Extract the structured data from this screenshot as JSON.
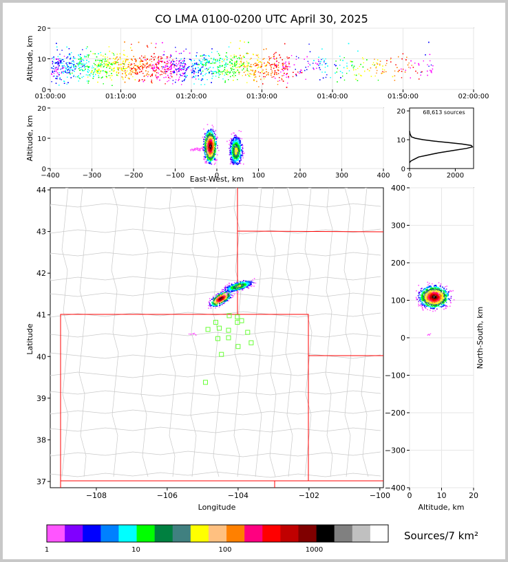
{
  "title": "CO LMA 0100-0200 UTC April 30, 2025",
  "panels": {
    "time_height": {
      "ylabel": "Altitude, km",
      "yticks": [
        "0",
        "10",
        "20"
      ],
      "xticks": [
        "01:00:00",
        "01:10:00",
        "01:20:00",
        "01:30:00",
        "01:40:00",
        "01:50:00",
        "02:00:00"
      ]
    },
    "ew_height": {
      "xlabel": "East-West, km",
      "ylabel": "Altitude, km",
      "xticks": [
        "−400",
        "−300",
        "−200",
        "−100",
        "0",
        "100",
        "200",
        "300",
        "400"
      ],
      "yticks": [
        "0",
        "10",
        "20"
      ]
    },
    "histogram": {
      "annotation": "68,613 sources",
      "xticks": [
        "0",
        "2000"
      ],
      "yticks": [
        "0",
        "10",
        "20"
      ]
    },
    "plan": {
      "xlabel": "Longitude",
      "ylabel": "Latitude",
      "xticks": [
        "−108",
        "−106",
        "−104",
        "−102",
        "−100"
      ],
      "yticks": [
        "37",
        "38",
        "39",
        "40",
        "41",
        "42",
        "43",
        "44"
      ]
    },
    "ns_height": {
      "xlabel": "Altitude, km",
      "ylabel": "North-South, km",
      "xticks": [
        "0",
        "10",
        "20"
      ],
      "yticks": [
        "400",
        "300",
        "200",
        "100",
        "0",
        "−100",
        "−200",
        "−300",
        "−400"
      ]
    }
  },
  "colorbar": {
    "label": "Sources/7 km²",
    "ticks": [
      "1",
      "10",
      "100",
      "1000"
    ],
    "colors": [
      "#ff55ff",
      "#8000ff",
      "#0000ff",
      "#0080ff",
      "#00ffff",
      "#00ff00",
      "#008040",
      "#408080",
      "#ffff00",
      "#ffc080",
      "#ff8000",
      "#ff0080",
      "#ff0000",
      "#c00000",
      "#800000",
      "#000000",
      "#808080",
      "#c0c0c0",
      "#ffffff"
    ]
  },
  "chart_data": [
    {
      "type": "scatter",
      "title": "CO LMA 0100-0200 UTC April 30, 2025",
      "xlabel": "",
      "ylabel": "Altitude, km",
      "xlim": [
        "01:00:00",
        "02:00:00"
      ],
      "ylim": [
        0,
        20
      ],
      "grid": true,
      "note": "sources 01:00–01:54, altitude mostly 2–12 km"
    },
    {
      "type": "heatmap",
      "xlabel": "East-West, km",
      "ylabel": "Altitude, km",
      "xlim": [
        -400,
        400
      ],
      "ylim": [
        0,
        20
      ],
      "grid": true,
      "cells": [
        {
          "x": -20,
          "y": 7,
          "weight": 1.0
        },
        {
          "x": 40,
          "y": 6,
          "weight": 0.55
        }
      ]
    },
    {
      "type": "line",
      "xlim": [
        0,
        2800
      ],
      "ylim": [
        0,
        21
      ],
      "x": [
        0,
        40,
        150,
        400,
        700,
        1000,
        1300,
        1700,
        2100,
        2500,
        2750,
        2700,
        2300,
        1700,
        1100,
        600,
        250,
        80,
        20,
        0
      ],
      "y": [
        2,
        2.5,
        3,
        4,
        4.5,
        5,
        5.5,
        6,
        6.5,
        7,
        7.5,
        8,
        8.5,
        9,
        9.5,
        10,
        10.5,
        11,
        12,
        13
      ],
      "annotation": "68,613 sources"
    },
    {
      "type": "heatmap",
      "xlabel": "Longitude",
      "ylabel": "Latitude",
      "xlim": [
        -109.3,
        -99.9
      ],
      "ylim": [
        36.85,
        44.05
      ],
      "grid": false,
      "stations_lon": [
        -104.85,
        -104.63,
        -104.53,
        -104.57,
        -104.27,
        -104.27,
        -104.02,
        -103.9,
        -104.0,
        -103.73,
        -103.63,
        -104.25,
        -104.02,
        -104.47,
        -104.92
      ],
      "stations_lat": [
        40.65,
        40.82,
        40.68,
        40.43,
        40.63,
        40.45,
        40.95,
        40.86,
        40.24,
        40.58,
        40.33,
        40.98,
        40.82,
        40.05,
        39.38
      ]
    },
    {
      "type": "heatmap",
      "xlabel": "Altitude, km",
      "ylabel": "North-South, km",
      "xlim": [
        0,
        20
      ],
      "ylim": [
        -400,
        400
      ],
      "grid": true
    }
  ]
}
